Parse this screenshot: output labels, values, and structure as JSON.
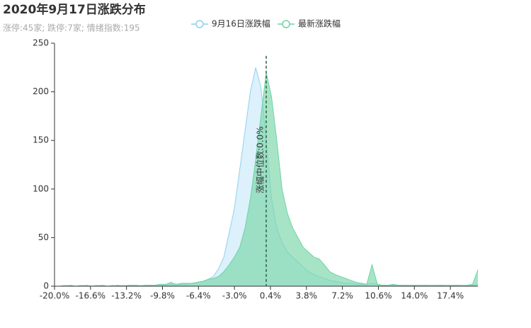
{
  "chart_data": {
    "type": "area",
    "title": "2020年9月17日涨跌分布",
    "subtitle": "涨停:45家; 跌停:7家; 情绪指数:195",
    "x": [
      -20,
      -19.5,
      -19,
      -18.5,
      -18,
      -17.5,
      -17,
      -16.5,
      -16,
      -15.5,
      -15,
      -14.5,
      -14,
      -13.5,
      -13,
      -12.5,
      -12,
      -11.5,
      -11,
      -10.5,
      -10,
      -9.5,
      -9,
      -8.5,
      -8,
      -7.5,
      -7,
      -6.5,
      -6,
      -5.5,
      -5,
      -4.5,
      -4,
      -3.5,
      -3,
      -2.5,
      -2,
      -1.5,
      -1,
      -0.5,
      0,
      0.5,
      1,
      1.5,
      2,
      2.5,
      3,
      3.5,
      4,
      4.5,
      5,
      5.5,
      6,
      6.5,
      7,
      7.5,
      8,
      8.5,
      9,
      9.5,
      10,
      10.5,
      11,
      11.5,
      12,
      12.5,
      13,
      13.5,
      14,
      14.5,
      15,
      15.5,
      16,
      16.5,
      17,
      17.5,
      18,
      18.5,
      19,
      19.5,
      20
    ],
    "series": [
      {
        "name": "9月16日涨跌幅",
        "color": "#8fd0f2",
        "fill": "rgba(186,228,248,0.5)",
        "values": [
          0,
          0,
          1,
          0,
          0,
          1,
          0,
          0,
          1,
          0,
          0,
          1,
          0,
          1,
          0,
          1,
          1,
          0,
          1,
          1,
          1,
          1,
          2,
          1,
          2,
          2,
          3,
          4,
          5,
          7,
          10,
          18,
          30,
          55,
          80,
          120,
          160,
          200,
          225,
          205,
          150,
          90,
          60,
          45,
          35,
          30,
          25,
          20,
          15,
          12,
          10,
          8,
          6,
          5,
          4,
          3,
          3,
          2,
          2,
          2,
          3,
          2,
          1,
          1,
          1,
          1,
          1,
          0,
          1,
          0,
          1,
          0,
          0,
          1,
          0,
          0,
          1,
          0,
          0,
          1,
          2
        ]
      },
      {
        "name": "最新涨跌幅",
        "color": "#6fd3a4",
        "fill": "rgba(120,214,168,0.65)",
        "values": [
          0,
          0,
          0,
          1,
          0,
          0,
          1,
          0,
          0,
          1,
          0,
          0,
          1,
          0,
          1,
          1,
          0,
          1,
          1,
          1,
          2,
          2,
          4,
          2,
          3,
          3,
          3,
          4,
          5,
          7,
          8,
          10,
          15,
          22,
          30,
          40,
          60,
          90,
          130,
          175,
          220,
          195,
          150,
          100,
          75,
          60,
          50,
          40,
          35,
          30,
          28,
          22,
          15,
          12,
          10,
          8,
          6,
          4,
          3,
          2,
          22,
          2,
          1,
          1,
          2,
          1,
          1,
          1,
          1,
          1,
          1,
          1,
          1,
          1,
          1,
          1,
          1,
          1,
          1,
          2,
          17
        ]
      }
    ],
    "xlim": [
      -20,
      20
    ],
    "xticks": [
      {
        "value": -20,
        "label": "-20.0%"
      },
      {
        "value": -16.6,
        "label": "-16.6%"
      },
      {
        "value": -13.2,
        "label": "-13.2%"
      },
      {
        "value": -9.8,
        "label": "-9.8%"
      },
      {
        "value": -6.4,
        "label": "-6.4%"
      },
      {
        "value": -3,
        "label": "-3.0%"
      },
      {
        "value": 0.4,
        "label": "0.4%"
      },
      {
        "value": 3.8,
        "label": "3.8%"
      },
      {
        "value": 7.2,
        "label": "7.2%"
      },
      {
        "value": 10.6,
        "label": "10.6%"
      },
      {
        "value": 14,
        "label": "14.0%"
      },
      {
        "value": 17.4,
        "label": "17.4%"
      }
    ],
    "ylim": [
      0,
      250
    ],
    "yticks": [
      0,
      50,
      100,
      150,
      200,
      250
    ],
    "markline": {
      "value": 0,
      "label": "涨幅中位数:0.0%",
      "color": "#2f5e4a"
    }
  }
}
